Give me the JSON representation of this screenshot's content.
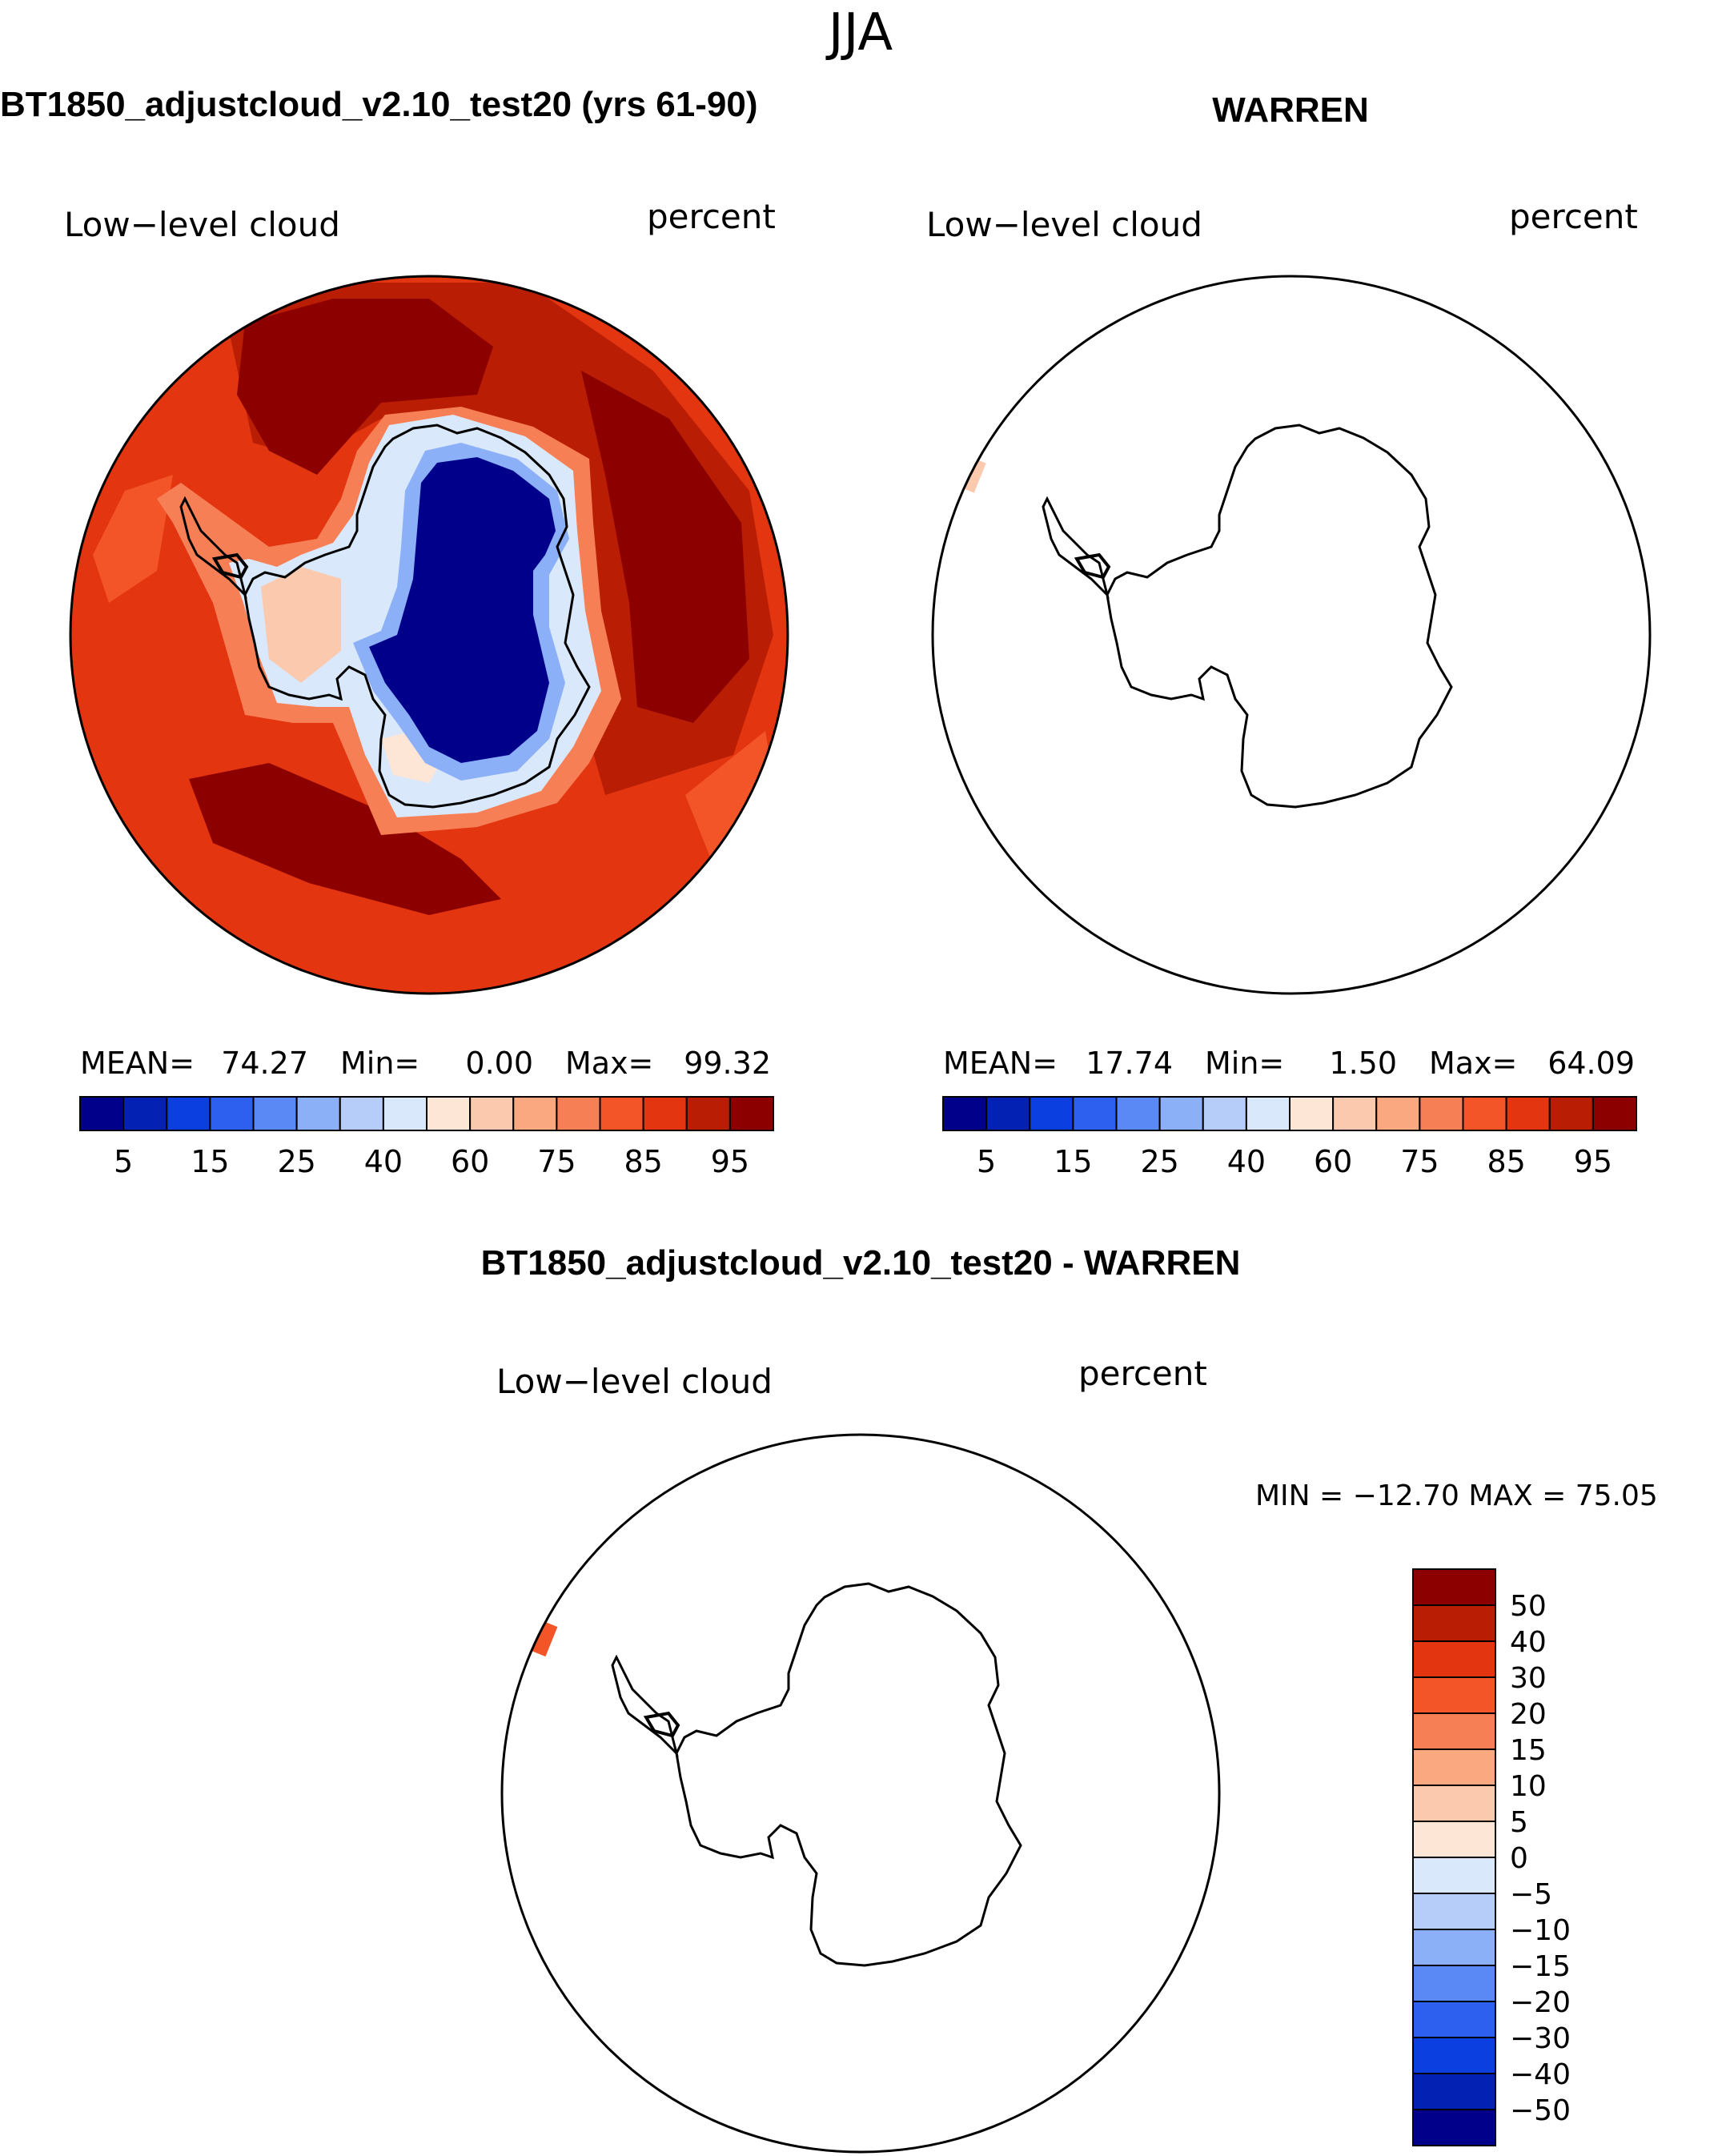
{
  "season": "JJA",
  "colors": {
    "seq": [
      "#00008b",
      "#0322b4",
      "#0b3fe0",
      "#2e60f0",
      "#5a88f5",
      "#8cb0f8",
      "#b6cdfa",
      "#d9e8fb",
      "#fde6d6",
      "#fbc9ae",
      "#f9a880",
      "#f77f55",
      "#f35428",
      "#e23510",
      "#b91e05",
      "#8c0000"
    ],
    "diff": [
      "#8c0000",
      "#b91e05",
      "#e23510",
      "#f35428",
      "#f77f55",
      "#f9a880",
      "#fbc9ae",
      "#fde6d6",
      "#d9e8fb",
      "#b6cdfa",
      "#8cb0f8",
      "#5a88f5",
      "#2e60f0",
      "#0b3fe0",
      "#0322b4",
      "#00008b"
    ]
  },
  "panels": [
    {
      "id": "model",
      "title": "BT1850_adjustcloud_v2.10_test20 (yrs 61-90)",
      "variable": "Low−level cloud",
      "units": "percent",
      "stats": {
        "mean_label": "MEAN=",
        "mean": "74.27",
        "min_label": "Min=",
        "min": "0.00",
        "max_label": "Max=",
        "max": "99.32"
      },
      "colorbar_ticks": [
        "5",
        "15",
        "25",
        "40",
        "60",
        "75",
        "85",
        "95"
      ]
    },
    {
      "id": "obs",
      "title": "WARREN",
      "variable": "Low−level cloud",
      "units": "percent",
      "stats": {
        "mean_label": "MEAN=",
        "mean": "17.74",
        "min_label": "Min=",
        "min": "1.50",
        "max_label": "Max=",
        "max": "64.09"
      },
      "colorbar_ticks": [
        "5",
        "15",
        "25",
        "40",
        "60",
        "75",
        "85",
        "95"
      ]
    },
    {
      "id": "diff",
      "title": "BT1850_adjustcloud_v2.10_test20 - WARREN",
      "variable": "Low−level cloud",
      "units": "percent",
      "minmax_text": "MIN = −12.70 MAX =   75.05",
      "colorbar_ticks": [
        "50",
        "40",
        "30",
        "20",
        "15",
        "10",
        "5",
        "0",
        "−5",
        "−10",
        "−15",
        "−20",
        "−30",
        "−40",
        "−50"
      ]
    }
  ]
}
